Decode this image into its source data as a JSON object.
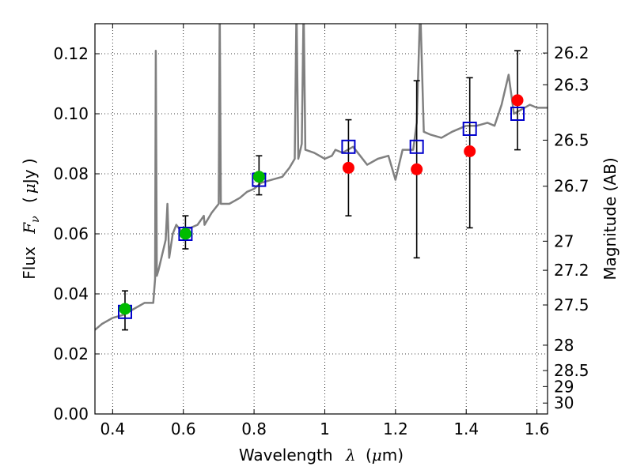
{
  "chart_data": {
    "type": "scatter",
    "xlabel_parts": {
      "text": "Wavelength",
      "symbol": "λ",
      "unit_open": "(",
      "unit_mu": "μ",
      "unit_rest": "m)"
    },
    "ylabel_parts": {
      "text": "Flux",
      "symbol": "F",
      "subscript": "ν",
      "unit_open": "(",
      "unit_mu": "μ",
      "unit_rest": "Jy )"
    },
    "ylabel_right": "Magnitude (AB)",
    "xlim": [
      0.35,
      1.63
    ],
    "ylim": [
      0.0,
      0.13
    ],
    "grid": true,
    "grid_style": "dotted",
    "x_ticks": [
      0.4,
      0.6,
      0.8,
      1.0,
      1.2,
      1.4,
      1.6
    ],
    "x_tick_labels": [
      "0.4",
      "0.6",
      "0.8",
      "1",
      "1.2",
      "1.4",
      "1.6"
    ],
    "y_ticks": [
      0.0,
      0.02,
      0.04,
      0.06,
      0.08,
      0.1,
      0.12
    ],
    "y_tick_labels": [
      "0.00",
      "0.02",
      "0.04",
      "0.06",
      "0.08",
      "0.10",
      "0.12"
    ],
    "right_ticks": [
      {
        "label": "26.2",
        "mag": 26.2
      },
      {
        "label": "26.3",
        "mag": 26.3
      },
      {
        "label": "26.5",
        "mag": 26.5
      },
      {
        "label": "26.7",
        "mag": 26.7
      },
      {
        "label": "27",
        "mag": 27.0
      },
      {
        "label": "27.2",
        "mag": 27.2
      },
      {
        "label": "27.5",
        "mag": 27.5
      },
      {
        "label": "28",
        "mag": 28.0
      },
      {
        "label": "28.5",
        "mag": 28.5
      },
      {
        "label": "29",
        "mag": 29.0
      },
      {
        "label": "30",
        "mag": 30.0
      }
    ],
    "colors": {
      "template": "#808080",
      "model_box": "#0000cc",
      "detection": "#00bb00",
      "measurement": "#ff0000",
      "errorbar": "#000000",
      "grid": "#000000"
    },
    "series": [
      {
        "kind": "spectrum",
        "points": [
          [
            0.35,
            0.028
          ],
          [
            0.37,
            0.03
          ],
          [
            0.4,
            0.032
          ],
          [
            0.43,
            0.033
          ],
          [
            0.46,
            0.035
          ],
          [
            0.49,
            0.037
          ],
          [
            0.515,
            0.037
          ],
          [
            0.52,
            0.045
          ],
          [
            0.522,
            0.121
          ],
          [
            0.525,
            0.046
          ],
          [
            0.53,
            0.048
          ],
          [
            0.55,
            0.058
          ],
          [
            0.555,
            0.07
          ],
          [
            0.56,
            0.052
          ],
          [
            0.57,
            0.06
          ],
          [
            0.58,
            0.063
          ],
          [
            0.6,
            0.06
          ],
          [
            0.62,
            0.062
          ],
          [
            0.64,
            0.063
          ],
          [
            0.658,
            0.066
          ],
          [
            0.66,
            0.063
          ],
          [
            0.68,
            0.067
          ],
          [
            0.7,
            0.07
          ],
          [
            0.703,
            0.136
          ],
          [
            0.706,
            0.07
          ],
          [
            0.73,
            0.07
          ],
          [
            0.76,
            0.072
          ],
          [
            0.78,
            0.074
          ],
          [
            0.8,
            0.075
          ],
          [
            0.82,
            0.077
          ],
          [
            0.85,
            0.078
          ],
          [
            0.88,
            0.079
          ],
          [
            0.9,
            0.082
          ],
          [
            0.915,
            0.085
          ],
          [
            0.92,
            0.136
          ],
          [
            0.925,
            0.085
          ],
          [
            0.935,
            0.09
          ],
          [
            0.94,
            0.136
          ],
          [
            0.945,
            0.088
          ],
          [
            0.97,
            0.087
          ],
          [
            1.0,
            0.085
          ],
          [
            1.02,
            0.086
          ],
          [
            1.03,
            0.088
          ],
          [
            1.05,
            0.087
          ],
          [
            1.08,
            0.089
          ],
          [
            1.1,
            0.086
          ],
          [
            1.12,
            0.083
          ],
          [
            1.15,
            0.085
          ],
          [
            1.18,
            0.086
          ],
          [
            1.2,
            0.078
          ],
          [
            1.22,
            0.088
          ],
          [
            1.25,
            0.088
          ],
          [
            1.26,
            0.097
          ],
          [
            1.27,
            0.136
          ],
          [
            1.28,
            0.094
          ],
          [
            1.3,
            0.093
          ],
          [
            1.33,
            0.092
          ],
          [
            1.36,
            0.094
          ],
          [
            1.4,
            0.096
          ],
          [
            1.43,
            0.096
          ],
          [
            1.46,
            0.097
          ],
          [
            1.48,
            0.096
          ],
          [
            1.5,
            0.103
          ],
          [
            1.52,
            0.113
          ],
          [
            1.535,
            0.1
          ],
          [
            1.55,
            0.101
          ],
          [
            1.58,
            0.103
          ],
          [
            1.6,
            0.102
          ],
          [
            1.63,
            0.102
          ]
        ]
      },
      {
        "kind": "model",
        "points": [
          [
            0.435,
            0.034
          ],
          [
            0.606,
            0.06
          ],
          [
            0.814,
            0.078
          ],
          [
            1.067,
            0.089
          ],
          [
            1.26,
            0.089
          ],
          [
            1.41,
            0.095
          ],
          [
            1.545,
            0.1
          ]
        ]
      },
      {
        "kind": "detection",
        "points": [
          {
            "x": 0.435,
            "y": 0.035,
            "err_low": 0.028,
            "err_high": 0.041
          },
          {
            "x": 0.606,
            "y": 0.06,
            "err_low": 0.055,
            "err_high": 0.066
          },
          {
            "x": 0.814,
            "y": 0.079,
            "err_low": 0.073,
            "err_high": 0.086
          }
        ]
      },
      {
        "kind": "measurement",
        "points": [
          {
            "x": 1.067,
            "y": 0.082,
            "err_low": 0.066,
            "err_high": 0.098
          },
          {
            "x": 1.26,
            "y": 0.0815,
            "err_low": 0.052,
            "err_high": 0.111
          },
          {
            "x": 1.41,
            "y": 0.0875,
            "err_low": 0.062,
            "err_high": 0.112
          },
          {
            "x": 1.545,
            "y": 0.1045,
            "err_low": 0.088,
            "err_high": 0.121
          }
        ]
      }
    ]
  }
}
